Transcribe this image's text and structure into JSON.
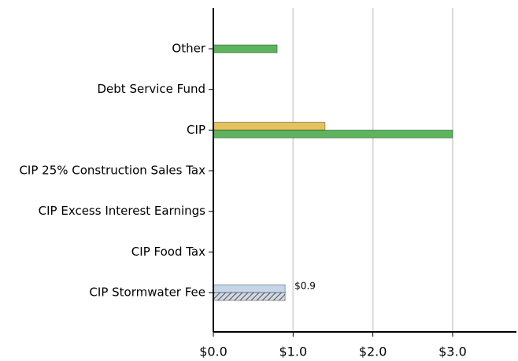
{
  "chart_data": {
    "type": "bar",
    "orientation": "horizontal",
    "categories": [
      "Other",
      "Debt Service Fund",
      "CIP",
      "CIP 25% Construction Sales Tax",
      "CIP Excess Interest Earnings",
      "CIP Food Tax",
      "CIP Stormwater Fee"
    ],
    "series": [
      {
        "color": "#e6c25e",
        "values": [
          null,
          null,
          1.4,
          null,
          null,
          null,
          null
        ]
      },
      {
        "color": "#5cb55c",
        "values": [
          0.8,
          null,
          3.0,
          null,
          null,
          null,
          null
        ]
      },
      {
        "color": "#c6d6ea",
        "values": [
          null,
          null,
          null,
          null,
          null,
          null,
          0.9
        ],
        "value_labels": [
          null,
          null,
          null,
          null,
          null,
          null,
          "$0.9"
        ]
      },
      {
        "color": "#6f7a88",
        "hatch": true,
        "values": [
          null,
          null,
          null,
          null,
          null,
          null,
          0.9
        ]
      }
    ],
    "xlim": [
      0,
      3.8
    ],
    "xticks": [
      {
        "value": 0,
        "label": "$0.0"
      },
      {
        "value": 1,
        "label": "$1.0"
      },
      {
        "value": 2,
        "label": "$2.0"
      },
      {
        "value": 3,
        "label": "$3.0"
      }
    ],
    "grid": true
  }
}
